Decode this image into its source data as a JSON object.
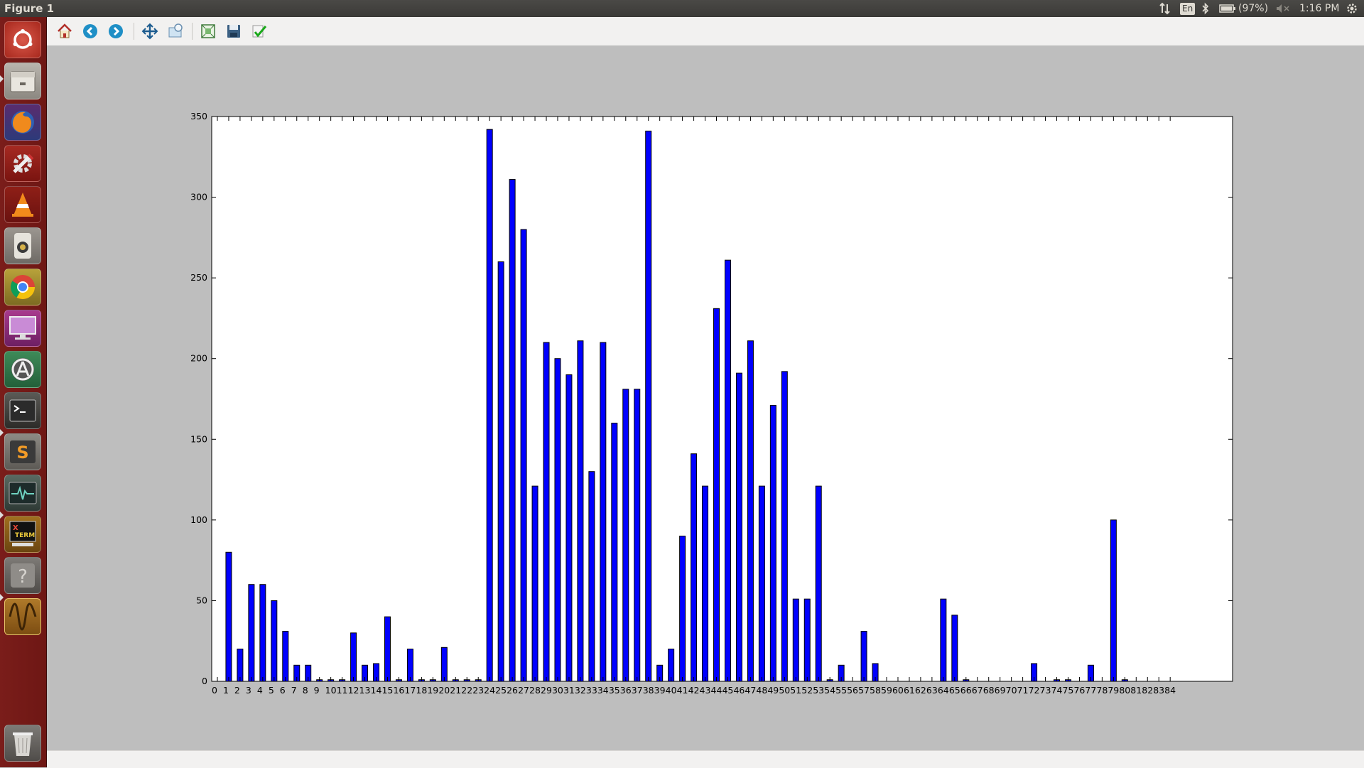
{
  "window": {
    "title": "Figure 1"
  },
  "panel": {
    "battery": "(97%)",
    "time": "1:16 PM",
    "keyboard": "En",
    "icons": [
      "network-arrows-icon",
      "keyboard-layout-icon",
      "bluetooth-icon",
      "battery-icon",
      "volume-muted-icon",
      "settings-gear-icon"
    ]
  },
  "launcher": {
    "items": [
      {
        "name": "dash-home-icon"
      },
      {
        "name": "files-icon"
      },
      {
        "name": "firefox-icon"
      },
      {
        "name": "system-settings-icon"
      },
      {
        "name": "vlc-icon"
      },
      {
        "name": "rhythmbox-icon"
      },
      {
        "name": "chrome-icon"
      },
      {
        "name": "display-icon"
      },
      {
        "name": "software-updater-icon"
      },
      {
        "name": "terminal-icon"
      },
      {
        "name": "sublime-text-icon"
      },
      {
        "name": "system-monitor-icon"
      },
      {
        "name": "xterm-icon"
      },
      {
        "name": "help-icon"
      },
      {
        "name": "oscilloscope-icon"
      },
      {
        "name": "trash-icon"
      }
    ],
    "xterm_label": "X TERM"
  },
  "toolbar": {
    "buttons": [
      "home-icon",
      "back-icon",
      "forward-icon",
      "pan-icon",
      "zoom-icon",
      "subplots-icon",
      "save-icon",
      "edit-check-icon"
    ]
  },
  "colors": {
    "bar": "#0000ff",
    "launcher": "#741a17",
    "figure_bg": "#bebebe"
  },
  "chart_data": {
    "type": "bar",
    "title": "",
    "xlabel": "",
    "ylabel": "",
    "ylim": [
      0,
      350
    ],
    "xlim": [
      0,
      90
    ],
    "yticks": [
      0,
      50,
      100,
      150,
      200,
      250,
      300,
      350
    ],
    "categories": [
      "0",
      "1",
      "2",
      "3",
      "4",
      "5",
      "6",
      "7",
      "8",
      "9",
      "10",
      "11",
      "12",
      "13",
      "14",
      "15",
      "16",
      "17",
      "18",
      "19",
      "20",
      "21",
      "22",
      "23",
      "24",
      "25",
      "26",
      "27",
      "28",
      "29",
      "30",
      "31",
      "32",
      "33",
      "34",
      "35",
      "36",
      "37",
      "38",
      "39",
      "40",
      "41",
      "42",
      "43",
      "44",
      "45",
      "46",
      "47",
      "48",
      "49",
      "50",
      "51",
      "52",
      "53",
      "54",
      "55",
      "56",
      "57",
      "58",
      "59",
      "60",
      "61",
      "62",
      "63",
      "64",
      "65",
      "66",
      "67",
      "68",
      "69",
      "70",
      "71",
      "72",
      "73",
      "74",
      "75",
      "76",
      "77",
      "78",
      "79",
      "80",
      "81",
      "82",
      "83",
      "84"
    ],
    "values": [
      0,
      80,
      20,
      60,
      60,
      50,
      31,
      10,
      10,
      1,
      1,
      1,
      30,
      10,
      11,
      40,
      1,
      20,
      1,
      1,
      21,
      1,
      1,
      1,
      342,
      260,
      311,
      280,
      121,
      210,
      200,
      190,
      211,
      130,
      210,
      160,
      181,
      181,
      341,
      10,
      20,
      90,
      141,
      121,
      231,
      261,
      191,
      211,
      121,
      171,
      192,
      51,
      51,
      121,
      1,
      10,
      0,
      31,
      11,
      0,
      0,
      0,
      0,
      0,
      51,
      41,
      1,
      0,
      0,
      0,
      0,
      0,
      11,
      0,
      1,
      1,
      0,
      10,
      0,
      100,
      1,
      0,
      0,
      0,
      0
    ],
    "grid": false,
    "legend": "none"
  }
}
